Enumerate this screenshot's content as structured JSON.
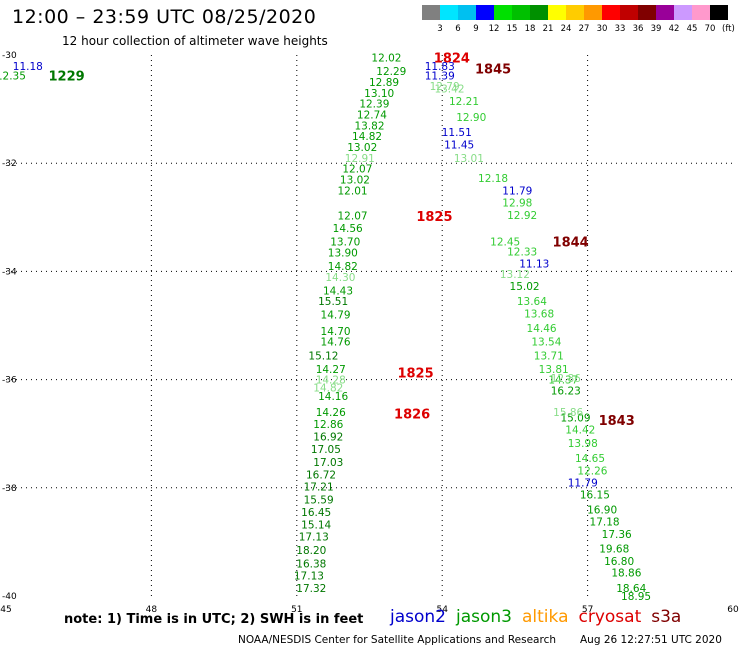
{
  "header": {
    "title": "12:00 – 23:59 UTC 08/25/2020",
    "subtitle": "12 hour collection of altimeter wave heights"
  },
  "colorbar": {
    "labels": [
      "3",
      "6",
      "9",
      "12",
      "15",
      "18",
      "21",
      "24",
      "27",
      "30",
      "33",
      "36",
      "39",
      "42",
      "45",
      "70"
    ],
    "unit": "(ft)",
    "colors": [
      "#808080",
      "#00e5ff",
      "#00c0f0",
      "#0000ff",
      "#00e000",
      "#00c000",
      "#009000",
      "#ffff00",
      "#ffcc00",
      "#ff9900",
      "#ff0000",
      "#c00000",
      "#800000",
      "#990099",
      "#cc99ff",
      "#ff99cc",
      "#000000"
    ]
  },
  "footer": {
    "note": "note:  1) Time is in UTC;  2) SWH is in feet",
    "satellites": [
      {
        "name": "jason2",
        "color": "#0000cc"
      },
      {
        "name": "jason3",
        "color": "#009900"
      },
      {
        "name": "altika",
        "color": "#ff9900"
      },
      {
        "name": "cryosat",
        "color": "#dd0000"
      },
      {
        "name": "s3a",
        "color": "#800000"
      }
    ],
    "credit": "NOAA/NESDIS Center for Satellite Applications and Research",
    "timestamp": "Aug 26 12:27:51 UTC 2020"
  },
  "chart_data": {
    "type": "scatter",
    "title": "12:00 – 23:59 UTC 08/25/2020",
    "subtitle": "12 hour collection of altimeter wave heights",
    "xlabel": "",
    "ylabel": "",
    "xlim": [
      45,
      60
    ],
    "ylim": [
      -40,
      -30
    ],
    "xticks": [
      45,
      48,
      51,
      54,
      57,
      60
    ],
    "yticks": [
      -30,
      -32,
      -34,
      -36,
      -38,
      -40
    ],
    "grid": true,
    "legend": "bottom",
    "time_labels": [
      {
        "text": "1229",
        "x": 46.25,
        "y": -30.38,
        "color": "#007700"
      },
      {
        "text": "1824",
        "x": 54.2,
        "y": -30.05,
        "color": "#dd0000"
      },
      {
        "text": "1845",
        "x": 55.05,
        "y": -30.25,
        "color": "#800000"
      },
      {
        "text": "1825",
        "x": 53.84,
        "y": -32.98,
        "color": "#dd0000"
      },
      {
        "text": "1844",
        "x": 56.65,
        "y": -33.45,
        "color": "#800000"
      },
      {
        "text": "1825",
        "x": 53.45,
        "y": -35.87,
        "color": "#dd0000"
      },
      {
        "text": "1826",
        "x": 53.38,
        "y": -36.63,
        "color": "#dd0000"
      },
      {
        "text": "1843",
        "x": 57.6,
        "y": -36.75,
        "color": "#800000"
      }
    ],
    "series": [
      {
        "name": "jason2",
        "color": "#0000cc",
        "points": [
          {
            "x": 45.45,
            "y": -30.2,
            "v": "11.18"
          },
          {
            "x": 53.95,
            "y": -30.2,
            "v": "11.83"
          },
          {
            "x": 53.95,
            "y": -30.38,
            "v": "11.39"
          },
          {
            "x": 54.3,
            "y": -31.42,
            "v": "11.51"
          },
          {
            "x": 54.35,
            "y": -31.65,
            "v": "11.45"
          },
          {
            "x": 55.55,
            "y": -32.5,
            "v": "11.79"
          },
          {
            "x": 55.9,
            "y": -33.85,
            "v": "11.13"
          },
          {
            "x": 56.9,
            "y": -37.9,
            "v": "11.79"
          }
        ]
      },
      {
        "name": "jason3_east",
        "color": "#009900",
        "points": [
          {
            "x": 55.7,
            "y": -34.27,
            "v": "15.02"
          },
          {
            "x": 56.55,
            "y": -36.2,
            "v": "16.23"
          },
          {
            "x": 56.75,
            "y": -36.7,
            "v": "15.09"
          },
          {
            "x": 57.15,
            "y": -38.12,
            "v": "16.15"
          },
          {
            "x": 57.3,
            "y": -38.4,
            "v": "16.90"
          },
          {
            "x": 57.35,
            "y": -38.62,
            "v": "17.18"
          },
          {
            "x": 57.6,
            "y": -38.85,
            "v": "17.36"
          },
          {
            "x": 57.55,
            "y": -39.12,
            "v": "19.68"
          },
          {
            "x": 57.65,
            "y": -39.35,
            "v": "16.80"
          },
          {
            "x": 57.8,
            "y": -39.57,
            "v": "18.86"
          },
          {
            "x": 57.9,
            "y": -39.85,
            "v": "18.64"
          },
          {
            "x": 58.0,
            "y": -40.0,
            "v": "18.95"
          }
        ]
      },
      {
        "name": "jason3_east_light",
        "color": "#33cc33",
        "points": [
          {
            "x": 54.45,
            "y": -30.85,
            "v": "12.21"
          },
          {
            "x": 54.6,
            "y": -31.15,
            "v": "12.90"
          },
          {
            "x": 55.05,
            "y": -32.27,
            "v": "12.18"
          },
          {
            "x": 55.55,
            "y": -32.73,
            "v": "12.98"
          },
          {
            "x": 55.65,
            "y": -32.96,
            "v": "12.92"
          },
          {
            "x": 55.3,
            "y": -33.45,
            "v": "12.45"
          },
          {
            "x": 55.65,
            "y": -33.63,
            "v": "12.33"
          },
          {
            "x": 55.85,
            "y": -34.55,
            "v": "13.64"
          },
          {
            "x": 56.0,
            "y": -34.78,
            "v": "13.68"
          },
          {
            "x": 56.05,
            "y": -35.05,
            "v": "14.46"
          },
          {
            "x": 56.15,
            "y": -35.3,
            "v": "13.54"
          },
          {
            "x": 56.2,
            "y": -35.55,
            "v": "13.71"
          },
          {
            "x": 56.3,
            "y": -35.8,
            "v": "13.81"
          },
          {
            "x": 56.5,
            "y": -36.0,
            "v": "14.37"
          },
          {
            "x": 56.85,
            "y": -36.92,
            "v": "14.42"
          },
          {
            "x": 56.9,
            "y": -37.17,
            "v": "13.98"
          },
          {
            "x": 57.05,
            "y": -37.45,
            "v": "14.65"
          },
          {
            "x": 57.1,
            "y": -37.68,
            "v": "12.26"
          }
        ]
      },
      {
        "name": "jason3_east_pale",
        "color": "#88dd88",
        "points": [
          {
            "x": 54.05,
            "y": -30.57,
            "v": "12.79"
          },
          {
            "x": 54.15,
            "y": -30.62,
            "v": "13.42"
          },
          {
            "x": 54.55,
            "y": -31.9,
            "v": "13.01"
          },
          {
            "x": 55.5,
            "y": -34.05,
            "v": "13.12"
          },
          {
            "x": 56.55,
            "y": -35.97,
            "v": "12.86"
          },
          {
            "x": 56.6,
            "y": -36.6,
            "v": "15.86"
          }
        ]
      },
      {
        "name": "jason3_west",
        "color": "#009900",
        "points": [
          {
            "x": 45.1,
            "y": -30.38,
            "v": "12.35"
          },
          {
            "x": 52.85,
            "y": -30.05,
            "v": "12.02"
          },
          {
            "x": 52.95,
            "y": -30.3,
            "v": "12.29"
          },
          {
            "x": 52.8,
            "y": -30.5,
            "v": "12.89"
          },
          {
            "x": 52.7,
            "y": -30.7,
            "v": "13.10"
          },
          {
            "x": 52.6,
            "y": -30.9,
            "v": "12.39"
          },
          {
            "x": 52.55,
            "y": -31.1,
            "v": "12.74"
          },
          {
            "x": 52.5,
            "y": -31.3,
            "v": "13.82"
          },
          {
            "x": 52.45,
            "y": -31.5,
            "v": "14.82"
          },
          {
            "x": 52.35,
            "y": -31.7,
            "v": "13.02"
          },
          {
            "x": 52.25,
            "y": -32.1,
            "v": "12.07"
          },
          {
            "x": 52.2,
            "y": -32.3,
            "v": "13.02"
          },
          {
            "x": 52.15,
            "y": -32.5,
            "v": "12.01"
          },
          {
            "x": 52.15,
            "y": -32.97,
            "v": "12.07"
          },
          {
            "x": 52.05,
            "y": -33.2,
            "v": "14.56"
          },
          {
            "x": 52.0,
            "y": -33.45,
            "v": "13.70"
          },
          {
            "x": 51.95,
            "y": -33.65,
            "v": "13.90"
          },
          {
            "x": 51.95,
            "y": -33.9,
            "v": "14.82"
          },
          {
            "x": 51.85,
            "y": -34.35,
            "v": "14.43"
          },
          {
            "x": 51.8,
            "y": -34.8,
            "v": "14.79"
          },
          {
            "x": 51.8,
            "y": -35.1,
            "v": "14.70"
          },
          {
            "x": 51.8,
            "y": -35.3,
            "v": "14.76"
          },
          {
            "x": 51.7,
            "y": -35.8,
            "v": "14.27"
          },
          {
            "x": 51.75,
            "y": -36.3,
            "v": "14.16"
          },
          {
            "x": 51.7,
            "y": -36.6,
            "v": "14.26"
          },
          {
            "x": 51.65,
            "y": -36.82,
            "v": "12.86"
          }
        ]
      },
      {
        "name": "jason3_west_pale",
        "color": "#88dd88",
        "points": [
          {
            "x": 52.3,
            "y": -31.9,
            "v": "12.91"
          },
          {
            "x": 51.9,
            "y": -34.1,
            "v": "14.30"
          },
          {
            "x": 51.7,
            "y": -36.0,
            "v": "14.28"
          },
          {
            "x": 51.65,
            "y": -36.15,
            "v": "14.82"
          }
        ]
      },
      {
        "name": "jason3_west_dark",
        "color": "#007700",
        "points": [
          {
            "x": 51.75,
            "y": -34.55,
            "v": "15.51"
          },
          {
            "x": 51.55,
            "y": -35.55,
            "v": "15.12"
          },
          {
            "x": 51.65,
            "y": -37.05,
            "v": "16.92"
          },
          {
            "x": 51.6,
            "y": -37.28,
            "v": "17.05"
          },
          {
            "x": 51.65,
            "y": -37.52,
            "v": "17.03"
          },
          {
            "x": 51.5,
            "y": -37.75,
            "v": "16.72"
          },
          {
            "x": 51.45,
            "y": -37.98,
            "v": "17.21"
          },
          {
            "x": 51.45,
            "y": -38.22,
            "v": "15.59"
          },
          {
            "x": 51.4,
            "y": -38.45,
            "v": "16.45"
          },
          {
            "x": 51.4,
            "y": -38.68,
            "v": "15.14"
          },
          {
            "x": 51.35,
            "y": -38.9,
            "v": "17.13"
          },
          {
            "x": 51.3,
            "y": -39.15,
            "v": "18.20"
          },
          {
            "x": 51.3,
            "y": -39.4,
            "v": "16.38"
          },
          {
            "x": 51.25,
            "y": -39.62,
            "v": "17.13"
          },
          {
            "x": 51.3,
            "y": -39.85,
            "v": "17.32"
          }
        ]
      }
    ]
  }
}
